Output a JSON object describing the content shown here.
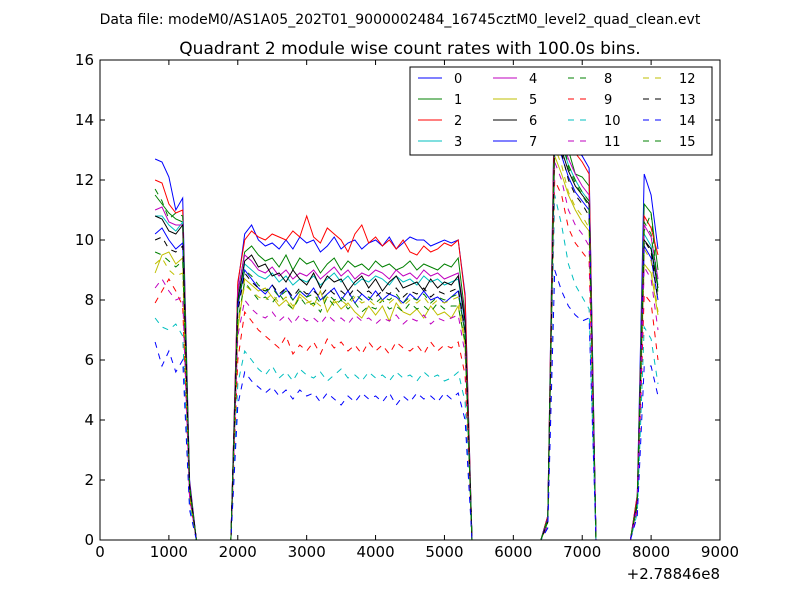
{
  "chart_data": {
    "type": "line",
    "suptitle": "Data file: modeM0/AS1A05_202T01_9000002484_16745cztM0_level2_quad_clean.evt",
    "title": "Quadrant 2 module wise count rates with 100.0s bins.",
    "xlabel": "",
    "ylabel": "",
    "x_offset_label": "+2.78846e8",
    "xlim": [
      0,
      9000
    ],
    "ylim": [
      0,
      16
    ],
    "xticks": [
      "0",
      "1000",
      "2000",
      "3000",
      "4000",
      "5000",
      "6000",
      "7000",
      "8000",
      "9000"
    ],
    "yticks": [
      "0",
      "2",
      "4",
      "6",
      "8",
      "10",
      "12",
      "14",
      "16"
    ],
    "grid": false,
    "legend": {
      "placement": "top-right",
      "columns": 4
    },
    "x": [
      800,
      900,
      1000,
      1100,
      1200,
      1300,
      1400,
      1500,
      1900,
      2000,
      2100,
      2200,
      2300,
      2400,
      2500,
      2600,
      2700,
      2800,
      2900,
      3000,
      3100,
      3200,
      3300,
      3400,
      3500,
      3600,
      3700,
      3800,
      3900,
      4000,
      4100,
      4200,
      4300,
      4400,
      4500,
      4600,
      4700,
      4800,
      4900,
      5000,
      5100,
      5200,
      5300,
      5400,
      6400,
      6500,
      6600,
      6700,
      6800,
      6900,
      7000,
      7100,
      7200,
      7300,
      7700,
      7800,
      7900,
      8000,
      8100
    ],
    "series": [
      {
        "name": "0",
        "color": "#0000ff",
        "dashed": false,
        "values": [
          12.7,
          12.6,
          12.1,
          11.0,
          11.4,
          2.0,
          0,
          0,
          0,
          8.5,
          10.2,
          10.5,
          10.0,
          9.8,
          9.9,
          9.7,
          10.0,
          9.7,
          10.1,
          9.9,
          10.0,
          9.6,
          9.8,
          10.1,
          9.7,
          9.9,
          10.0,
          9.7,
          9.9,
          10.0,
          9.8,
          10.1,
          9.7,
          9.9,
          10.1,
          10.0,
          10.0,
          9.8,
          9.9,
          10.0,
          9.9,
          10.0,
          8.2,
          0,
          0,
          0.8,
          15.3,
          14.8,
          13.6,
          13.0,
          12.8,
          12.4,
          0,
          0,
          0,
          1.5,
          12.2,
          11.5,
          9.7
        ]
      },
      {
        "name": "1",
        "color": "#008000",
        "dashed": false,
        "values": [
          11.5,
          11.2,
          10.9,
          10.7,
          10.6,
          1.8,
          0,
          0,
          0,
          8.2,
          9.6,
          9.8,
          9.5,
          9.3,
          9.4,
          9.1,
          9.5,
          9.0,
          9.4,
          9.2,
          9.3,
          8.9,
          9.2,
          9.4,
          9.0,
          9.3,
          9.1,
          9.2,
          9.0,
          9.3,
          9.1,
          9.2,
          9.0,
          9.1,
          9.3,
          9.0,
          9.2,
          9.1,
          9.0,
          9.2,
          9.1,
          9.4,
          7.5,
          0,
          0,
          0.8,
          14.2,
          13.8,
          13.0,
          12.2,
          12.1,
          11.8,
          0,
          0,
          0,
          1.4,
          11.2,
          10.9,
          9.0
        ]
      },
      {
        "name": "2",
        "color": "#ff0000",
        "dashed": false,
        "values": [
          12.0,
          11.9,
          11.2,
          10.9,
          11.0,
          1.9,
          0,
          0,
          0,
          8.6,
          10.0,
          10.3,
          10.1,
          10.0,
          10.2,
          10.1,
          10.0,
          10.3,
          10.1,
          10.8,
          10.1,
          9.9,
          10.4,
          10.2,
          10.0,
          9.6,
          10.2,
          10.5,
          9.9,
          10.1,
          9.8,
          10.0,
          9.7,
          10.0,
          9.6,
          9.5,
          9.8,
          9.6,
          9.7,
          9.9,
          9.8,
          10.0,
          8.1,
          0,
          0,
          0.8,
          15.0,
          14.3,
          13.5,
          12.9,
          12.6,
          12.2,
          0,
          0,
          0,
          1.5,
          10.8,
          10.4,
          9.5
        ]
      },
      {
        "name": "3",
        "color": "#00bfbf",
        "dashed": false,
        "values": [
          10.8,
          10.8,
          10.5,
          10.3,
          10.6,
          1.8,
          0,
          0,
          0,
          8.0,
          9.2,
          9.0,
          8.8,
          8.7,
          8.9,
          8.6,
          8.8,
          8.5,
          8.7,
          8.6,
          8.8,
          8.5,
          8.7,
          8.9,
          8.6,
          8.8,
          8.5,
          8.7,
          8.6,
          8.8,
          8.7,
          8.5,
          8.8,
          8.6,
          8.7,
          8.5,
          8.8,
          8.6,
          8.7,
          8.5,
          8.6,
          8.7,
          7.2,
          0,
          0,
          0.7,
          13.8,
          13.2,
          12.5,
          12.0,
          11.6,
          11.3,
          0,
          0,
          0,
          1.3,
          10.2,
          9.8,
          8.5
        ]
      },
      {
        "name": "4",
        "color": "#bf00bf",
        "dashed": false,
        "values": [
          11.0,
          11.1,
          10.6,
          10.5,
          10.5,
          1.8,
          0,
          0,
          0,
          8.3,
          9.5,
          9.3,
          9.0,
          8.9,
          9.1,
          8.8,
          9.0,
          8.7,
          8.9,
          8.8,
          9.0,
          8.7,
          8.9,
          9.1,
          8.8,
          9.0,
          8.7,
          8.9,
          8.8,
          9.0,
          8.9,
          8.7,
          9.0,
          8.8,
          8.9,
          8.7,
          9.0,
          8.8,
          8.9,
          8.7,
          8.8,
          8.9,
          7.4,
          0,
          0,
          0.7,
          14.0,
          13.4,
          12.7,
          12.2,
          11.8,
          11.5,
          0,
          0,
          0,
          1.3,
          10.5,
          10.1,
          8.7
        ]
      },
      {
        "name": "5",
        "color": "#bfbf00",
        "dashed": false,
        "values": [
          8.9,
          9.5,
          9.6,
          9.2,
          9.4,
          1.5,
          0,
          0,
          0,
          7.0,
          8.7,
          8.5,
          8.3,
          8.4,
          8.1,
          7.8,
          8.0,
          7.7,
          8.2,
          8.0,
          7.8,
          8.3,
          7.6,
          8.0,
          7.7,
          7.9,
          7.6,
          7.4,
          7.8,
          7.5,
          7.8,
          7.3,
          7.9,
          7.6,
          7.5,
          7.7,
          7.4,
          7.8,
          7.5,
          7.6,
          7.4,
          7.8,
          6.5,
          0,
          0,
          0.6,
          12.8,
          12.2,
          11.5,
          11.0,
          10.6,
          10.3,
          0,
          0,
          0,
          1.2,
          9.2,
          8.9,
          7.5
        ]
      },
      {
        "name": "6",
        "color": "#000000",
        "dashed": false,
        "values": [
          10.8,
          10.7,
          10.3,
          10.2,
          10.5,
          1.8,
          0,
          0,
          0,
          8.0,
          9.3,
          9.5,
          9.1,
          9.2,
          8.8,
          8.9,
          8.6,
          9.0,
          8.7,
          8.5,
          8.9,
          8.4,
          8.8,
          8.6,
          8.7,
          8.3,
          8.6,
          8.8,
          8.4,
          8.7,
          8.3,
          8.6,
          8.8,
          8.4,
          8.5,
          8.6,
          8.3,
          8.7,
          8.4,
          8.6,
          8.5,
          8.8,
          7.3,
          0,
          0,
          0.7,
          13.6,
          13.0,
          12.3,
          11.8,
          11.5,
          11.2,
          0,
          0,
          0,
          1.3,
          10.0,
          9.7,
          8.4
        ]
      },
      {
        "name": "7",
        "color": "#0000ff",
        "dashed": false,
        "values": [
          10.2,
          10.4,
          10.0,
          9.7,
          9.9,
          1.7,
          0,
          0,
          0,
          7.8,
          9.0,
          8.7,
          8.4,
          8.2,
          8.5,
          8.1,
          8.4,
          8.0,
          8.3,
          8.1,
          8.4,
          8.0,
          8.2,
          8.4,
          8.0,
          8.3,
          7.9,
          8.2,
          8.0,
          8.3,
          8.0,
          8.2,
          8.1,
          7.9,
          8.2,
          8.0,
          8.3,
          8.0,
          8.1,
          7.9,
          8.1,
          8.3,
          6.9,
          0,
          0,
          0.7,
          13.3,
          12.8,
          12.1,
          11.6,
          11.3,
          11.0,
          0,
          0,
          0,
          1.2,
          9.8,
          9.4,
          8.0
        ]
      },
      {
        "name": "8",
        "color": "#008000",
        "dashed": true,
        "values": [
          9.6,
          9.5,
          9.3,
          9.1,
          9.3,
          1.6,
          0,
          0,
          0,
          7.3,
          8.6,
          8.3,
          8.0,
          8.1,
          7.9,
          8.2,
          7.9,
          7.7,
          8.1,
          7.8,
          7.9,
          7.6,
          8.1,
          7.8,
          8.0,
          7.7,
          7.9,
          7.6,
          7.8,
          7.7,
          8.0,
          7.7,
          7.8,
          7.6,
          7.9,
          7.7,
          7.8,
          7.6,
          7.9,
          7.7,
          7.8,
          7.8,
          6.6,
          0,
          0,
          0.6,
          14.2,
          13.6,
          12.4,
          11.9,
          11.5,
          11.1,
          0,
          0,
          0,
          1.3,
          10.3,
          10.9,
          8.2
        ]
      },
      {
        "name": "9",
        "color": "#ff0000",
        "dashed": true,
        "values": [
          7.9,
          8.3,
          8.7,
          8.3,
          7.8,
          1.3,
          0,
          0,
          0,
          6.0,
          7.6,
          7.3,
          7.0,
          6.8,
          6.6,
          6.4,
          6.8,
          6.2,
          6.5,
          6.3,
          6.6,
          6.2,
          6.7,
          6.4,
          6.6,
          6.3,
          6.5,
          6.2,
          6.6,
          6.3,
          6.5,
          6.2,
          6.6,
          6.4,
          6.3,
          6.5,
          6.2,
          6.6,
          6.3,
          6.5,
          6.4,
          6.6,
          5.5,
          0,
          0,
          0.5,
          12.0,
          11.5,
          10.4,
          9.9,
          9.6,
          9.3,
          0,
          0,
          0,
          1.0,
          8.2,
          7.9,
          6.0
        ]
      },
      {
        "name": "10",
        "color": "#00bfbf",
        "dashed": true,
        "values": [
          7.4,
          7.1,
          7.0,
          7.2,
          6.8,
          1.2,
          0,
          0,
          0,
          5.2,
          6.3,
          6.0,
          5.7,
          5.5,
          5.8,
          5.4,
          5.6,
          5.3,
          5.7,
          5.5,
          5.4,
          5.6,
          5.3,
          5.5,
          5.7,
          5.4,
          5.5,
          5.3,
          5.6,
          5.4,
          5.5,
          5.3,
          5.6,
          5.4,
          5.5,
          5.3,
          5.6,
          5.4,
          5.5,
          5.3,
          5.4,
          5.6,
          4.6,
          0,
          0,
          0.4,
          11.5,
          10.5,
          9.2,
          8.5,
          8.1,
          7.7,
          0,
          0,
          0,
          0.9,
          7.1,
          6.7,
          5.2
        ]
      },
      {
        "name": "11",
        "color": "#bf00bf",
        "dashed": true,
        "values": [
          8.4,
          8.7,
          8.3,
          8.0,
          8.1,
          1.4,
          0,
          0,
          0,
          6.8,
          8.0,
          7.7,
          7.5,
          7.4,
          7.6,
          7.3,
          7.5,
          7.2,
          7.5,
          7.3,
          7.4,
          7.2,
          7.5,
          7.3,
          7.4,
          7.2,
          7.5,
          7.3,
          7.4,
          7.2,
          7.4,
          7.3,
          7.5,
          7.2,
          7.4,
          7.3,
          7.5,
          7.2,
          7.4,
          7.3,
          7.4,
          7.5,
          6.2,
          0,
          0,
          0.5,
          12.6,
          12.0,
          11.0,
          10.5,
          10.2,
          9.8,
          0,
          0,
          0,
          1.1,
          9.1,
          8.7,
          7.0
        ]
      },
      {
        "name": "12",
        "color": "#bfbf00",
        "dashed": true,
        "values": [
          9.2,
          9.4,
          9.0,
          8.8,
          8.9,
          1.5,
          0,
          0,
          0,
          7.2,
          8.5,
          8.3,
          8.1,
          8.0,
          8.2,
          7.9,
          8.1,
          7.8,
          8.1,
          7.9,
          8.0,
          7.8,
          8.1,
          7.9,
          8.0,
          7.8,
          8.1,
          7.9,
          8.0,
          7.8,
          8.0,
          7.9,
          8.1,
          7.8,
          8.0,
          7.9,
          8.1,
          7.8,
          8.0,
          7.9,
          8.0,
          8.1,
          6.7,
          0,
          0,
          0.6,
          13.1,
          12.5,
          11.6,
          11.1,
          10.8,
          10.4,
          0,
          0,
          0,
          1.2,
          9.7,
          9.3,
          7.6
        ]
      },
      {
        "name": "13",
        "color": "#000000",
        "dashed": true,
        "values": [
          10.0,
          10.1,
          9.7,
          9.6,
          9.8,
          1.7,
          0,
          0,
          0,
          7.6,
          8.9,
          8.6,
          8.4,
          8.3,
          8.5,
          8.2,
          8.4,
          8.1,
          8.4,
          8.2,
          8.3,
          8.1,
          8.4,
          8.2,
          8.3,
          8.1,
          8.4,
          8.2,
          8.3,
          8.1,
          8.3,
          8.2,
          8.4,
          8.1,
          8.3,
          8.2,
          8.4,
          8.1,
          8.3,
          8.2,
          8.3,
          8.4,
          7.0,
          0,
          0,
          0.6,
          13.5,
          12.9,
          12.0,
          11.5,
          11.2,
          10.8,
          0,
          0,
          0,
          1.2,
          10.0,
          9.6,
          8.0
        ]
      },
      {
        "name": "14",
        "color": "#0000ff",
        "dashed": true,
        "values": [
          6.6,
          5.8,
          6.3,
          5.6,
          6.0,
          1.0,
          0,
          0,
          0,
          4.5,
          5.6,
          5.3,
          5.1,
          4.9,
          5.1,
          4.8,
          5.0,
          4.7,
          5.0,
          4.8,
          4.9,
          4.6,
          4.9,
          4.7,
          4.5,
          4.8,
          4.6,
          4.9,
          4.7,
          4.8,
          4.6,
          4.9,
          4.5,
          4.8,
          4.6,
          4.9,
          4.7,
          4.8,
          4.6,
          4.9,
          4.7,
          4.9,
          4.0,
          0,
          0,
          0.4,
          9.0,
          8.3,
          7.8,
          7.5,
          7.3,
          7.4,
          0,
          0,
          0,
          0.8,
          5.8,
          5.8,
          4.8
        ]
      },
      {
        "name": "15",
        "color": "#008000",
        "dashed": true,
        "values": [
          11.7,
          11.3,
          10.7,
          10.9,
          10.8,
          1.8,
          0,
          0,
          0,
          7.9,
          9.0,
          8.8,
          8.5,
          8.3,
          8.4,
          8.1,
          8.3,
          8.0,
          8.3,
          8.1,
          8.2,
          7.9,
          8.2,
          8.0,
          8.1,
          7.9,
          8.2,
          8.0,
          8.1,
          7.9,
          8.1,
          8.0,
          8.2,
          7.9,
          8.1,
          8.0,
          8.2,
          7.9,
          8.1,
          8.0,
          8.1,
          8.2,
          6.9,
          0,
          0,
          0.7,
          14.0,
          13.4,
          12.5,
          12.0,
          11.6,
          11.3,
          0,
          0,
          0,
          1.3,
          10.6,
          10.2,
          8.4
        ]
      }
    ]
  }
}
